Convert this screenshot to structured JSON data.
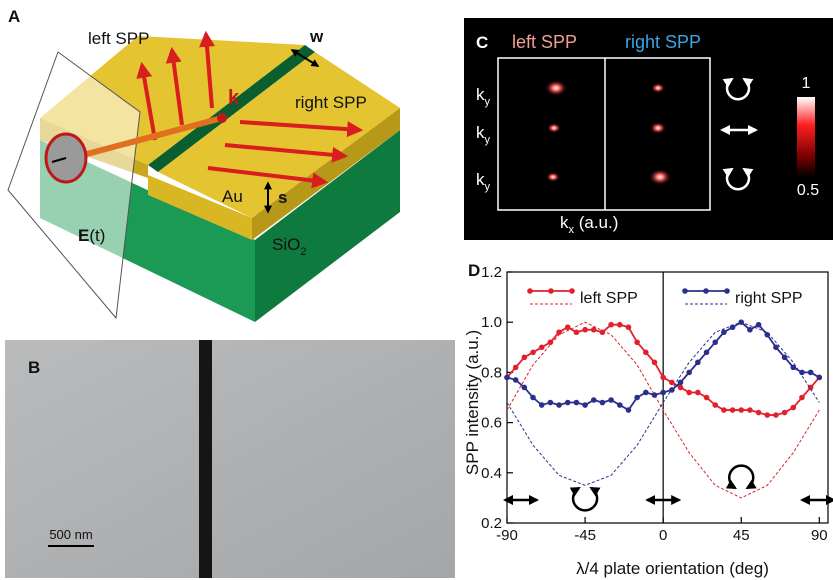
{
  "panels": {
    "a": {
      "letter": "A",
      "left": "left SPP",
      "width": "w",
      "wavevector": "k",
      "right": "right SPP",
      "metal": "Au",
      "step": "s",
      "substrate": {
        "text": "SiO",
        "subscript": "2"
      },
      "field": {
        "symbol": "E",
        "argument": "(t)"
      }
    },
    "b": {
      "letter": "B",
      "scale": "500 nm"
    },
    "c": {
      "letter": "C",
      "left": "left SPP",
      "right": "right SPP",
      "row_labels": [
        {
          "symbol": "k",
          "subscript": "y"
        },
        {
          "symbol": "k",
          "subscript": "y"
        },
        {
          "symbol": "k",
          "subscript": "y"
        }
      ],
      "x_label": {
        "symbol": "k",
        "subscript": "x",
        "unit": " (a.u.)"
      },
      "colorbar": {
        "max": 1,
        "min": 0.5
      }
    }
  },
  "chart_data": {
    "type": "line",
    "panel": "D",
    "x_label": "λ/4 plate orientation (deg)",
    "y_label": "SPP intensity (a.u.)",
    "xlim": [
      -90,
      95
    ],
    "ylim": [
      0.2,
      1.2
    ],
    "xticks": [
      -90,
      -45,
      0,
      45,
      90
    ],
    "yticks": [
      0.2,
      0.4,
      0.6,
      0.8,
      {
        "value": 1.0,
        "label": "1.0"
      },
      1.2
    ],
    "x": [
      -90,
      -85,
      -80,
      -75,
      -70,
      -65,
      -60,
      -55,
      -50,
      -45,
      -40,
      -35,
      -30,
      -25,
      -20,
      -15,
      -10,
      -5,
      0,
      5,
      10,
      15,
      20,
      25,
      30,
      35,
      40,
      45,
      50,
      55,
      60,
      65,
      70,
      75,
      80,
      85,
      90
    ],
    "series": [
      {
        "name": "left SPP",
        "color": "#e2202c",
        "values": [
          0.78,
          0.82,
          0.86,
          0.88,
          0.9,
          0.92,
          0.96,
          0.98,
          0.96,
          0.97,
          0.97,
          0.96,
          0.99,
          0.99,
          0.98,
          0.92,
          0.88,
          0.84,
          0.78,
          0.76,
          0.74,
          0.72,
          0.72,
          0.7,
          0.67,
          0.65,
          0.65,
          0.65,
          0.65,
          0.64,
          0.63,
          0.63,
          0.64,
          0.66,
          0.7,
          0.74,
          0.78
        ],
        "fit": {
          "x": [
            -90,
            -75,
            -60,
            -45,
            -30,
            -15,
            0,
            15,
            30,
            45,
            60,
            75,
            90
          ],
          "values": [
            0.65,
            0.83,
            0.95,
            1.0,
            0.95,
            0.83,
            0.65,
            0.48,
            0.35,
            0.3,
            0.35,
            0.48,
            0.65
          ]
        }
      },
      {
        "name": "right SPP",
        "color": "#2b2f8c",
        "values": [
          0.78,
          0.77,
          0.74,
          0.7,
          0.67,
          0.68,
          0.67,
          0.68,
          0.68,
          0.67,
          0.69,
          0.68,
          0.69,
          0.67,
          0.65,
          0.7,
          0.72,
          0.71,
          0.72,
          0.73,
          0.76,
          0.8,
          0.84,
          0.88,
          0.92,
          0.96,
          0.98,
          1.0,
          0.97,
          0.99,
          0.95,
          0.9,
          0.86,
          0.82,
          0.8,
          0.8,
          0.78
        ],
        "fit": {
          "x": [
            -90,
            -75,
            -60,
            -45,
            -30,
            -15,
            0,
            15,
            30,
            45,
            60,
            75,
            90
          ],
          "values": [
            0.68,
            0.51,
            0.39,
            0.35,
            0.39,
            0.51,
            0.68,
            0.84,
            0.96,
            1.0,
            0.96,
            0.84,
            0.68
          ]
        }
      }
    ]
  }
}
